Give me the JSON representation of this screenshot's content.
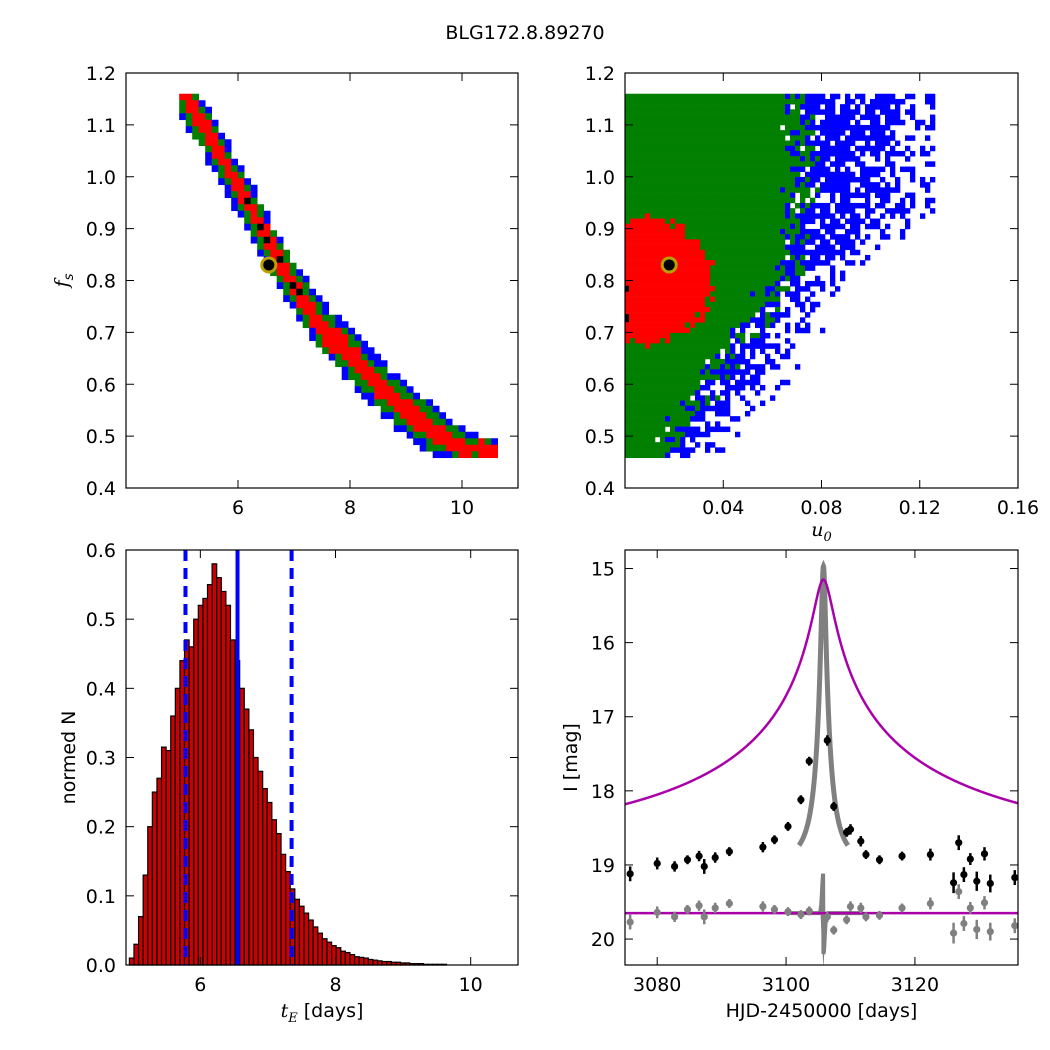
{
  "figure": {
    "title": "BLG172.8.89270"
  },
  "colors": {
    "blue": "#0000ff",
    "green": "#007f00",
    "red": "#ff0000",
    "black": "#000000",
    "bar_fill": "#cc0000",
    "model": "#aa00aa",
    "residual": "#808080",
    "marker_edge": "#b8a000"
  },
  "chart_data": [
    {
      "id": "fs_vs_tE",
      "type": "heatmap",
      "xlabel": "",
      "ylabel": "f_s",
      "xlim": [
        4.0,
        11.0
      ],
      "ylim": [
        0.4,
        1.2
      ],
      "xticks": [
        "6",
        "8",
        "10"
      ],
      "xtick_values": [
        6,
        8,
        10
      ],
      "yticks": [
        "0.4",
        "0.5",
        "0.6",
        "0.7",
        "0.8",
        "0.9",
        "1.0",
        "1.1",
        "1.2"
      ],
      "ytick_values": [
        0.4,
        0.5,
        0.6,
        0.7,
        0.8,
        0.9,
        1.0,
        1.1,
        1.2
      ],
      "levels": [
        "blue",
        "green",
        "red",
        "black"
      ],
      "ridge": [
        [
          5.0,
          1.16
        ],
        [
          5.5,
          1.08
        ],
        [
          6.0,
          0.98
        ],
        [
          6.5,
          0.88
        ],
        [
          7.0,
          0.79
        ],
        [
          7.5,
          0.71
        ],
        [
          8.0,
          0.655
        ],
        [
          8.5,
          0.6
        ],
        [
          9.0,
          0.55
        ],
        [
          9.5,
          0.51
        ],
        [
          10.0,
          0.48
        ],
        [
          10.6,
          0.47
        ]
      ],
      "best_fit": {
        "x": 6.55,
        "y": 0.83
      }
    },
    {
      "id": "fs_vs_u0",
      "type": "heatmap",
      "xlabel": "u_0",
      "ylabel": "",
      "xlim": [
        0.0,
        0.16
      ],
      "ylim": [
        0.4,
        1.2
      ],
      "xticks": [
        "0.04",
        "0.08",
        "0.12",
        "0.16"
      ],
      "xtick_values": [
        0.04,
        0.08,
        0.12,
        0.16
      ],
      "yticks": [
        "0.4",
        "0.5",
        "0.6",
        "0.7",
        "0.8",
        "0.9",
        "1.0",
        "1.1",
        "1.2"
      ],
      "ytick_values": [
        0.4,
        0.5,
        0.6,
        0.7,
        0.8,
        0.9,
        1.0,
        1.1,
        1.2
      ],
      "levels": [
        "blue",
        "green",
        "red",
        "black"
      ],
      "best_fit": {
        "x": 0.018,
        "y": 0.83
      }
    },
    {
      "id": "tE_histogram",
      "type": "bar",
      "xlabel": "t_E [days]",
      "ylabel": "normed N",
      "xlim": [
        4.9,
        10.7
      ],
      "ylim": [
        0.0,
        0.6
      ],
      "xticks": [
        "6",
        "8",
        "10"
      ],
      "xtick_values": [
        6,
        8,
        10
      ],
      "yticks": [
        "0.0",
        "0.1",
        "0.2",
        "0.3",
        "0.4",
        "0.5",
        "0.6"
      ],
      "ytick_values": [
        0.0,
        0.1,
        0.2,
        0.3,
        0.4,
        0.5,
        0.6
      ],
      "bin_start": 4.95,
      "bin_width": 0.068,
      "values": [
        0.01,
        0.03,
        0.07,
        0.13,
        0.2,
        0.25,
        0.27,
        0.315,
        0.31,
        0.36,
        0.4,
        0.44,
        0.47,
        0.46,
        0.5,
        0.52,
        0.53,
        0.55,
        0.58,
        0.56,
        0.54,
        0.52,
        0.47,
        0.44,
        0.4,
        0.37,
        0.34,
        0.3,
        0.28,
        0.255,
        0.235,
        0.21,
        0.19,
        0.16,
        0.135,
        0.11,
        0.095,
        0.085,
        0.075,
        0.065,
        0.055,
        0.046,
        0.038,
        0.033,
        0.028,
        0.025,
        0.02,
        0.018,
        0.015,
        0.012,
        0.011,
        0.01,
        0.008,
        0.007,
        0.006,
        0.005,
        0.005,
        0.004,
        0.004,
        0.003,
        0.003,
        0.002,
        0.002,
        0.002,
        0.001,
        0.001,
        0.001,
        0.001,
        0.001
      ],
      "median": 6.55,
      "interval": [
        5.78,
        7.35
      ]
    },
    {
      "id": "light_curve",
      "type": "scatter",
      "xlabel": "HJD-2450000 [days]",
      "ylabel": "I [mag]",
      "xlim": [
        3075,
        3136
      ],
      "ylim": [
        20.35,
        14.75
      ],
      "xticks": [
        "3080",
        "3100",
        "3120"
      ],
      "xtick_values": [
        3080,
        3100,
        3120
      ],
      "yticks": [
        "15",
        "16",
        "17",
        "18",
        "19",
        "20"
      ],
      "ytick_values": [
        15,
        16,
        17,
        18,
        19,
        20
      ],
      "model": {
        "t0": 3105.8,
        "baseline": 19.0,
        "peak": 15.15,
        "tau": 2.0
      },
      "residual_baseline": 19.65,
      "data": [
        [
          3075.8,
          19.12,
          0.1
        ],
        [
          3080.0,
          18.98,
          0.08
        ],
        [
          3082.7,
          19.02,
          0.07
        ],
        [
          3084.7,
          18.93,
          0.06
        ],
        [
          3086.5,
          18.88,
          0.07
        ],
        [
          3087.3,
          19.02,
          0.1
        ],
        [
          3089.0,
          18.9,
          0.07
        ],
        [
          3091.2,
          18.82,
          0.06
        ],
        [
          3096.4,
          18.76,
          0.07
        ],
        [
          3098.2,
          18.66,
          0.06
        ],
        [
          3100.3,
          18.48,
          0.06
        ],
        [
          3102.3,
          18.12,
          0.06
        ],
        [
          3103.6,
          17.6,
          0.06
        ],
        [
          3106.4,
          17.32,
          0.07
        ],
        [
          3107.4,
          18.21,
          0.06
        ],
        [
          3109.4,
          18.56,
          0.06
        ],
        [
          3110.0,
          18.52,
          0.07
        ],
        [
          3111.6,
          18.68,
          0.07
        ],
        [
          3112.4,
          18.86,
          0.06
        ],
        [
          3114.5,
          18.93,
          0.06
        ],
        [
          3118.0,
          18.88,
          0.06
        ],
        [
          3122.4,
          18.86,
          0.08
        ],
        [
          3126.0,
          19.24,
          0.14
        ],
        [
          3126.8,
          18.7,
          0.1
        ],
        [
          3127.6,
          19.13,
          0.1
        ],
        [
          3128.6,
          18.92,
          0.08
        ],
        [
          3129.6,
          19.22,
          0.13
        ],
        [
          3130.8,
          18.85,
          0.09
        ],
        [
          3131.7,
          19.25,
          0.12
        ],
        [
          3135.5,
          19.17,
          0.1
        ]
      ],
      "residuals": [
        [
          3075.8,
          19.77,
          0.1
        ],
        [
          3080.0,
          19.64,
          0.08
        ],
        [
          3082.7,
          19.7,
          0.07
        ],
        [
          3084.7,
          19.6,
          0.06
        ],
        [
          3086.5,
          19.55,
          0.07
        ],
        [
          3087.3,
          19.7,
          0.1
        ],
        [
          3089.0,
          19.58,
          0.07
        ],
        [
          3091.2,
          19.52,
          0.06
        ],
        [
          3096.4,
          19.56,
          0.07
        ],
        [
          3098.2,
          19.6,
          0.06
        ],
        [
          3100.3,
          19.63,
          0.06
        ],
        [
          3102.3,
          19.67,
          0.06
        ],
        [
          3103.6,
          19.62,
          0.06
        ],
        [
          3106.4,
          19.7,
          0.07
        ],
        [
          3107.4,
          19.88,
          0.06
        ],
        [
          3109.4,
          19.74,
          0.06
        ],
        [
          3110.0,
          19.56,
          0.07
        ],
        [
          3111.6,
          19.58,
          0.07
        ],
        [
          3112.4,
          19.7,
          0.06
        ],
        [
          3114.5,
          19.68,
          0.06
        ],
        [
          3118.0,
          19.58,
          0.06
        ],
        [
          3122.4,
          19.52,
          0.08
        ],
        [
          3126.0,
          19.92,
          0.14
        ],
        [
          3126.8,
          19.36,
          0.1
        ],
        [
          3127.6,
          19.79,
          0.1
        ],
        [
          3128.6,
          19.58,
          0.08
        ],
        [
          3129.6,
          19.87,
          0.13
        ],
        [
          3130.8,
          19.51,
          0.09
        ],
        [
          3131.7,
          19.9,
          0.12
        ],
        [
          3135.5,
          19.82,
          0.1
        ]
      ]
    }
  ]
}
